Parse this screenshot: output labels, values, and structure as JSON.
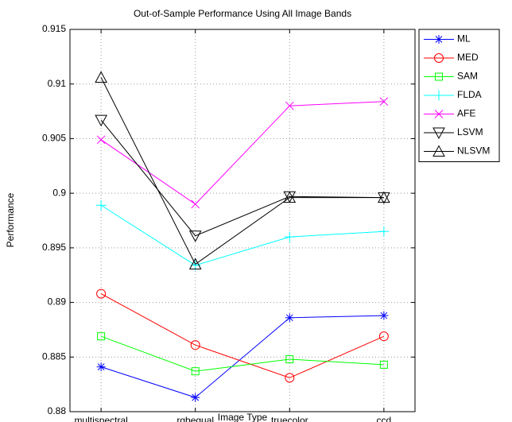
{
  "chart_data": {
    "type": "line",
    "title": "Out-of-Sample Performance Using All Image Bands",
    "x_label": "Image Type",
    "y_label": "Performance",
    "categories": [
      "multispectral",
      "rgbequal",
      "truecolor",
      "ccd"
    ],
    "ylim": [
      0.88,
      0.915
    ],
    "yticks": [
      0.88,
      0.885,
      0.89,
      0.895,
      0.9,
      0.905,
      0.91,
      0.915
    ],
    "grid": true,
    "legend": "outside-right",
    "series": [
      {
        "name": "ML",
        "color": "#0000ff",
        "marker": "asterisk",
        "values": [
          0.8841,
          0.8813,
          0.8886,
          0.8888
        ]
      },
      {
        "name": "MED",
        "color": "#ff0000",
        "marker": "circle",
        "values": [
          0.8908,
          0.8861,
          0.8831,
          0.8869
        ]
      },
      {
        "name": "SAM",
        "color": "#00ff00",
        "marker": "square",
        "values": [
          0.8869,
          0.8837,
          0.8848,
          0.8843
        ]
      },
      {
        "name": "FLDA",
        "color": "#00ffff",
        "marker": "plus",
        "values": [
          0.8989,
          0.8934,
          0.896,
          0.8965
        ]
      },
      {
        "name": "AFE",
        "color": "#ff00ff",
        "marker": "x",
        "values": [
          0.9049,
          0.899,
          0.908,
          0.9084
        ]
      },
      {
        "name": "LSVM",
        "color": "#000000",
        "marker": "triangle-down",
        "values": [
          0.9067,
          0.8961,
          0.8997,
          0.8996
        ]
      },
      {
        "name": "NLSVM",
        "color": "#000000",
        "marker": "triangle-up",
        "values": [
          0.9106,
          0.8935,
          0.8996,
          0.8996
        ]
      }
    ]
  }
}
